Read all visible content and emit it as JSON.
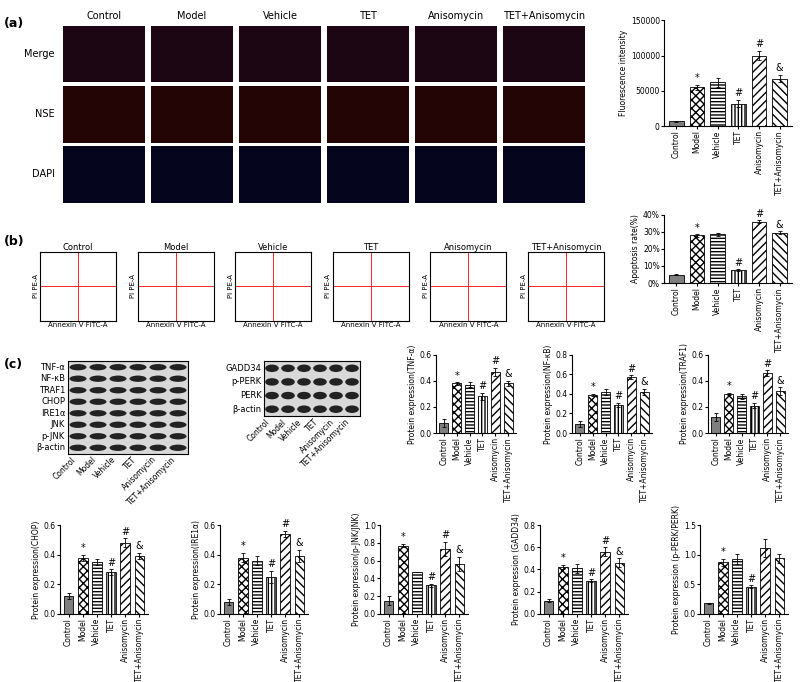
{
  "panel_labels": [
    "(a)",
    "(b)",
    "(c)"
  ],
  "microscopy": {
    "columns": [
      "Control",
      "Model",
      "Vehicle",
      "TET",
      "Anisomycin",
      "TET+Anisomycin"
    ],
    "rows": [
      "Merge",
      "NSE",
      "DAPI"
    ]
  },
  "flow_cytometry": {
    "titles": [
      "Control",
      "Model",
      "Vehicle",
      "TET",
      "Anisomycin",
      "TET+Anisomycin"
    ],
    "x_label": "Annexin V FITC-A",
    "y_label": "PI PE-A"
  },
  "western_blots": [
    {
      "bands": [
        "TNF-α",
        "NF-κB",
        "TRAF1",
        "CHOP",
        "IRE1α",
        "JNK",
        "p-JNK",
        "β-actin"
      ],
      "lanes": [
        "Control",
        "Model",
        "Vehicle",
        "TET",
        "Anisomycin",
        "TET+Anisomycin"
      ]
    },
    {
      "bands": [
        "GADD34",
        "p-PERK",
        "PERK",
        "β-actin"
      ],
      "lanes": [
        "Control",
        "Model",
        "Vehicle",
        "TET",
        "Anisomycin",
        "TET+Anisomycin"
      ]
    }
  ],
  "chart_data": [
    {
      "type": "bar",
      "y_label": "Fluorescence intensity",
      "categories": [
        "Control",
        "Model",
        "Vehicle",
        "TET",
        "Anisomycin",
        "TET+Anisomycin"
      ],
      "values": [
        7000,
        55000,
        62000,
        32000,
        100000,
        67000
      ],
      "errors": [
        1000,
        3000,
        7000,
        5000,
        6000,
        5000
      ],
      "significance": [
        null,
        "*",
        null,
        "#",
        "#",
        "&"
      ],
      "ylim": [
        0,
        150000
      ],
      "yticks": [
        0,
        50000,
        100000,
        150000
      ],
      "colors": [
        "#7f7f7f",
        "#ffffff",
        "#ffffff",
        "#ffffff",
        "#ffffff",
        "#ffffff"
      ]
    },
    {
      "type": "bar",
      "y_label": "Apoptosis rate(%)",
      "categories": [
        "Control",
        "Model",
        "Vehicle",
        "TET",
        "Anisomycin",
        "TET+Anisomycin"
      ],
      "values": [
        5,
        28,
        28.5,
        7.5,
        36,
        29.5
      ],
      "errors": [
        0.5,
        0.8,
        1,
        0.5,
        0.8,
        1
      ],
      "significance": [
        null,
        "*",
        null,
        "#",
        "#",
        "&"
      ],
      "ylim": [
        0,
        40
      ],
      "yticks": [
        {
          "value": 0,
          "label": "0%"
        },
        {
          "value": 10,
          "label": "10%"
        },
        {
          "value": 20,
          "label": "20%"
        },
        {
          "value": 30,
          "label": "30%"
        },
        {
          "value": 40,
          "label": "40%"
        }
      ],
      "colors": [
        "#7f7f7f",
        "#ffffff",
        "#ffffff",
        "#ffffff",
        "#ffffff",
        "#ffffff"
      ]
    },
    {
      "type": "bar",
      "y_label": "Protein expression(TNF-α)",
      "categories": [
        "Control",
        "Model",
        "Vehicle",
        "TET",
        "Anisomycin",
        "TET+Anisomycin"
      ],
      "values": [
        0.08,
        0.38,
        0.37,
        0.28,
        0.47,
        0.38
      ],
      "errors": [
        0.03,
        0.01,
        0.02,
        0.03,
        0.03,
        0.02
      ],
      "significance": [
        null,
        "*",
        null,
        "#",
        "#",
        "&"
      ],
      "ylim": [
        0.0,
        0.6
      ],
      "yticks": [
        0.0,
        0.2,
        0.4,
        0.6
      ],
      "colors": [
        "#7f7f7f",
        "#ffffff",
        "#ffffff",
        "#ffffff",
        "#ffffff",
        "#ffffff"
      ]
    },
    {
      "type": "bar",
      "y_label": "Protein expression(NF-κB)",
      "categories": [
        "Control",
        "Model",
        "Vehicle",
        "TET",
        "Anisomycin",
        "TET+Anisomycin"
      ],
      "values": [
        0.09,
        0.39,
        0.42,
        0.29,
        0.57,
        0.42
      ],
      "errors": [
        0.03,
        0.01,
        0.03,
        0.02,
        0.02,
        0.03
      ],
      "significance": [
        null,
        "*",
        null,
        "#",
        "#",
        "&"
      ],
      "ylim": [
        0.0,
        0.8
      ],
      "yticks": [
        0.0,
        0.2,
        0.4,
        0.6,
        0.8
      ],
      "colors": [
        "#7f7f7f",
        "#ffffff",
        "#ffffff",
        "#ffffff",
        "#ffffff",
        "#ffffff"
      ]
    },
    {
      "type": "bar",
      "y_label": "Protein expression(TRAF1)",
      "categories": [
        "Control",
        "Model",
        "Vehicle",
        "TET",
        "Anisomycin",
        "TET+Anisomycin"
      ],
      "values": [
        0.12,
        0.3,
        0.28,
        0.21,
        0.46,
        0.32
      ],
      "errors": [
        0.03,
        0.01,
        0.02,
        0.02,
        0.02,
        0.03
      ],
      "significance": [
        null,
        "*",
        null,
        "#",
        "#",
        "&"
      ],
      "ylim": [
        0.0,
        0.6
      ],
      "yticks": [
        0.0,
        0.2,
        0.4,
        0.6
      ],
      "colors": [
        "#7f7f7f",
        "#ffffff",
        "#ffffff",
        "#ffffff",
        "#ffffff",
        "#ffffff"
      ]
    },
    {
      "type": "bar",
      "y_label": "Protein expression(CHOP)",
      "categories": [
        "Control",
        "Model",
        "Vehicle",
        "TET",
        "Anisomycin",
        "TET+Anisomycin"
      ],
      "values": [
        0.12,
        0.38,
        0.35,
        0.28,
        0.48,
        0.39
      ],
      "errors": [
        0.02,
        0.02,
        0.02,
        0.02,
        0.03,
        0.02
      ],
      "significance": [
        null,
        "*",
        null,
        "#",
        "#",
        "&"
      ],
      "ylim": [
        0.0,
        0.6
      ],
      "yticks": [
        0.0,
        0.2,
        0.4,
        0.6
      ],
      "colors": [
        "#7f7f7f",
        "#ffffff",
        "#ffffff",
        "#ffffff",
        "#ffffff",
        "#ffffff"
      ]
    },
    {
      "type": "bar",
      "y_label": "Protein expression(IRE1α)",
      "categories": [
        "Control",
        "Model",
        "Vehicle",
        "TET",
        "Anisomycin",
        "TET+Anisomycin"
      ],
      "values": [
        0.08,
        0.38,
        0.36,
        0.25,
        0.54,
        0.39
      ],
      "errors": [
        0.02,
        0.03,
        0.03,
        0.04,
        0.02,
        0.04
      ],
      "significance": [
        null,
        "*",
        null,
        "#",
        "#",
        "&"
      ],
      "ylim": [
        0.0,
        0.6
      ],
      "yticks": [
        0.0,
        0.2,
        0.4,
        0.6
      ],
      "colors": [
        "#7f7f7f",
        "#ffffff",
        "#ffffff",
        "#ffffff",
        "#ffffff",
        "#ffffff"
      ]
    },
    {
      "type": "bar",
      "y_label": "Protein expression(p-JNK/JNK)",
      "categories": [
        "Control",
        "Model",
        "Vehicle",
        "TET",
        "Anisomycin",
        "TET+Anisomycin"
      ],
      "values": [
        0.15,
        0.77,
        0.47,
        0.32,
        0.73,
        0.56
      ],
      "errors": [
        0.05,
        0.02,
        0.0,
        0.02,
        0.08,
        0.08
      ],
      "significance": [
        null,
        "*",
        null,
        "#",
        "#",
        "&"
      ],
      "ylim": [
        0.0,
        1.0
      ],
      "yticks": [
        0.0,
        0.2,
        0.4,
        0.6,
        0.8,
        1.0
      ],
      "colors": [
        "#7f7f7f",
        "#ffffff",
        "#ffffff",
        "#ffffff",
        "#ffffff",
        "#ffffff"
      ]
    },
    {
      "type": "bar",
      "y_label": "Protein expression (GADD34)",
      "categories": [
        "Control",
        "Model",
        "Vehicle",
        "TET",
        "Anisomycin",
        "TET+Anisomycin"
      ],
      "values": [
        0.12,
        0.42,
        0.41,
        0.3,
        0.56,
        0.46
      ],
      "errors": [
        0.01,
        0.02,
        0.04,
        0.01,
        0.04,
        0.04
      ],
      "significance": [
        null,
        "*",
        null,
        "#",
        "#",
        "&"
      ],
      "ylim": [
        0.0,
        0.8
      ],
      "yticks": [
        0.0,
        0.2,
        0.4,
        0.6,
        0.8
      ],
      "colors": [
        "#7f7f7f",
        "#ffffff",
        "#ffffff",
        "#ffffff",
        "#ffffff",
        "#ffffff"
      ]
    },
    {
      "type": "bar",
      "y_label": "Protein expression (p-PERK/PERK)",
      "categories": [
        "Control",
        "Model",
        "Vehicle",
        "TET",
        "Anisomycin",
        "TET+Anisomycin"
      ],
      "values": [
        0.18,
        0.87,
        0.93,
        0.46,
        1.11,
        0.94
      ],
      "errors": [
        0.01,
        0.06,
        0.08,
        0.02,
        0.15,
        0.08
      ],
      "significance": [
        null,
        "*",
        null,
        "#",
        null,
        null
      ],
      "ylim": [
        0.0,
        1.5
      ],
      "yticks": [
        0.0,
        0.5,
        1.0,
        1.5
      ],
      "colors": [
        "#7f7f7f",
        "#ffffff",
        "#ffffff",
        "#ffffff",
        "#ffffff",
        "#ffffff"
      ]
    }
  ]
}
